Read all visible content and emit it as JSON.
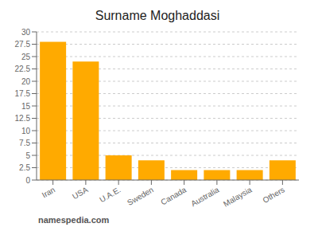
{
  "chart_data": {
    "type": "bar",
    "title": "Surname Moghaddasi",
    "categories": [
      "Iran",
      "USA",
      "U.A.E.",
      "Sweden",
      "Canada",
      "Australia",
      "Malaysia",
      "Others"
    ],
    "values": [
      28,
      24,
      5,
      4,
      2,
      2,
      2,
      4
    ],
    "color": "#FFAA00",
    "ylim": [
      0,
      30
    ],
    "yticks": [
      0,
      2.5,
      5,
      7.5,
      10,
      12.5,
      15,
      17.5,
      20,
      22.5,
      25,
      27.5,
      30
    ],
    "grid": true,
    "annotations": [
      "namespedia.com"
    ]
  }
}
